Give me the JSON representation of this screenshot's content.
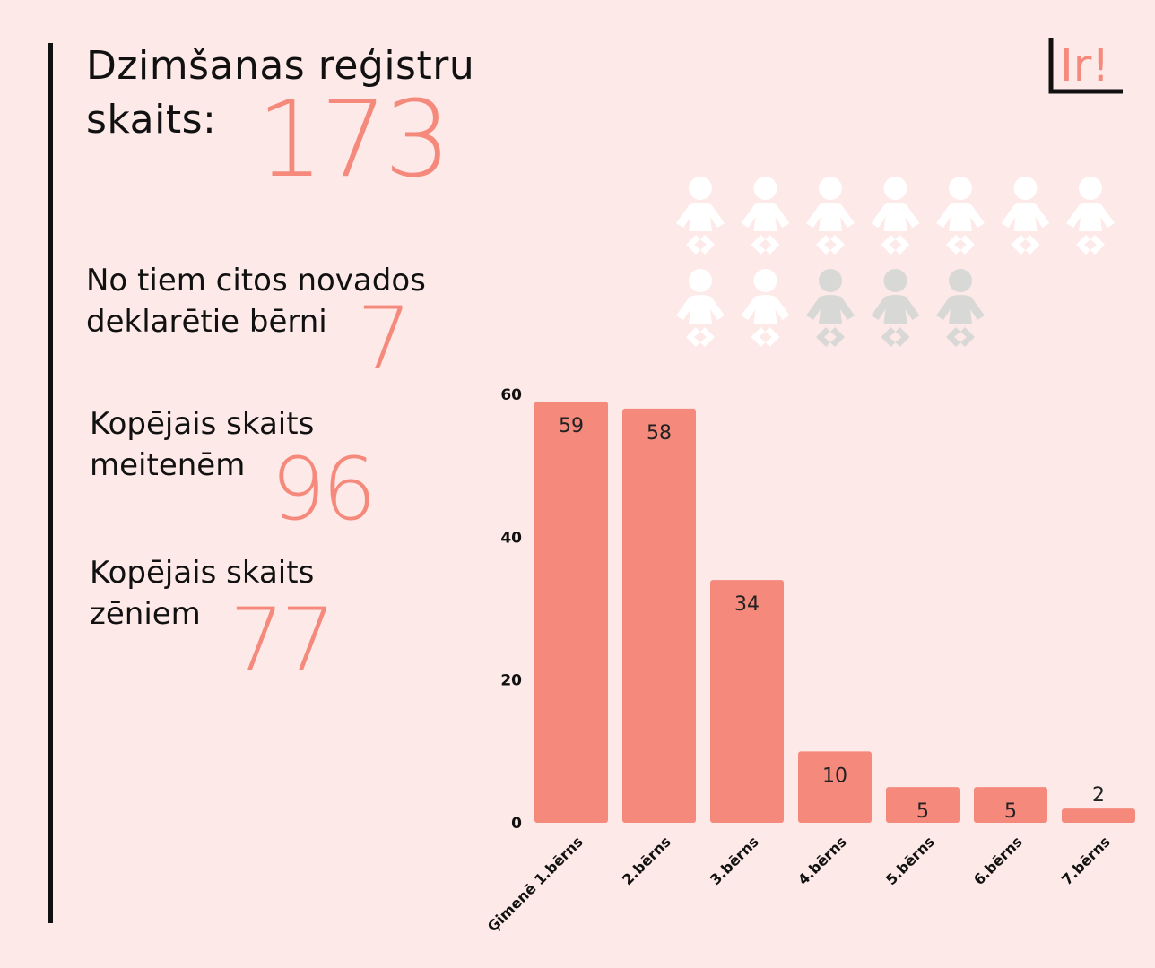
{
  "title": {
    "line1": "Dzimšanas reģistru",
    "line2": "skaits:",
    "total": "173"
  },
  "stats": [
    {
      "label_line1": "No tiem citos novados",
      "label_line2": "deklarētie bērni",
      "value": "7"
    },
    {
      "label_line1": "Kopējais skaits",
      "label_line2": "meitenēm",
      "value": "96"
    },
    {
      "label_line1": "Kopējais skaits",
      "label_line2": "zēniem",
      "value": "77"
    }
  ],
  "logo": {
    "text": "Ir!",
    "icon": "ir-logo"
  },
  "pictogram": {
    "icon": "baby-icon",
    "total": 12,
    "highlighted": 9,
    "highlight_color": "#ffffff",
    "muted_color": "#d8d8d6"
  },
  "colors": {
    "accent": "#f5897c",
    "background": "#fde9e7",
    "text": "#111111"
  },
  "chart_data": {
    "type": "bar",
    "categories": [
      "Ģimenē 1.bērns",
      "2.bērns",
      "3.bērns",
      "4.bērns",
      "5.bērns",
      "6.bērns",
      "7.bērns"
    ],
    "values": [
      59,
      58,
      34,
      10,
      5,
      5,
      2
    ],
    "title": "",
    "xlabel": "",
    "ylabel": "",
    "ylim": [
      0,
      60
    ],
    "yticks": [
      0,
      20,
      40,
      60
    ],
    "grid": false,
    "bar_color": "#f5897c"
  }
}
